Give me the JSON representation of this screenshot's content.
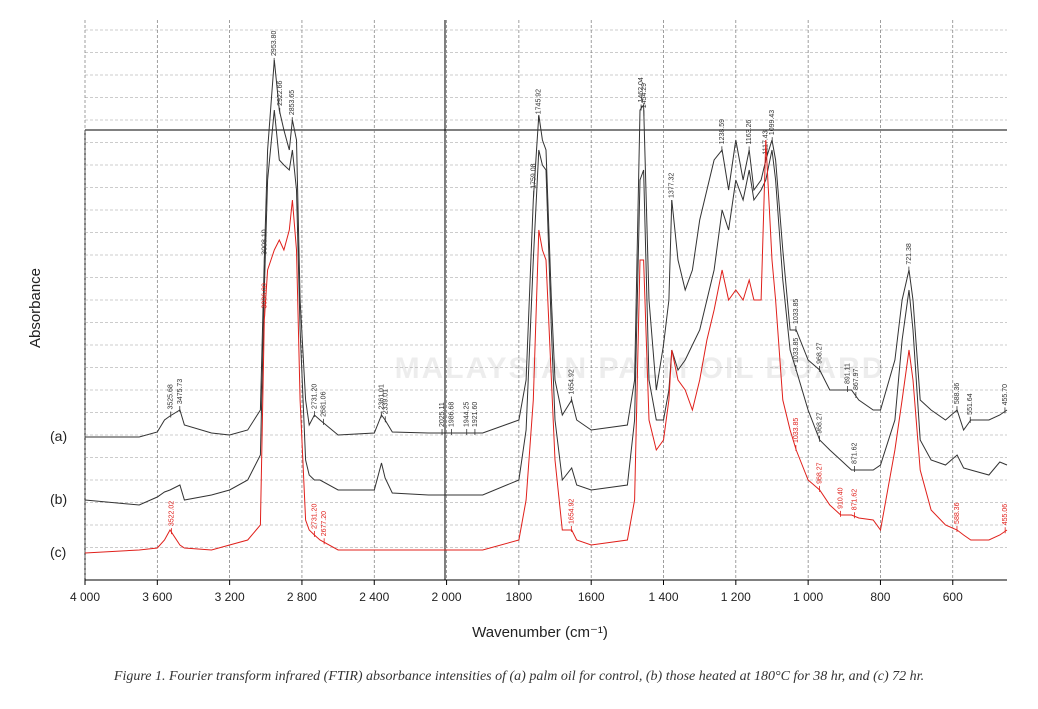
{
  "chart_data": {
    "type": "line",
    "xlabel": "Wavenumber (cm⁻¹)",
    "ylabel": "Absorbance",
    "watermark": "MALAYSIAN PALM OIL BOARD",
    "caption": "Figure 1. Fourier transform infrared (FTIR) absorbance intensities of (a) palm oil for control, (b) those heated at 180°C for 38 hr, and (c) 72 hr.",
    "xlim": [
      4000,
      450
    ],
    "ylim": [
      0,
      560
    ],
    "xticks": [
      {
        "value": 4000,
        "label": "4 000"
      },
      {
        "value": 3600,
        "label": "3 600"
      },
      {
        "value": 3200,
        "label": "3 200"
      },
      {
        "value": 2800,
        "label": "2 800"
      },
      {
        "value": 2400,
        "label": "2 400"
      },
      {
        "value": 2000,
        "label": "2 000"
      },
      1800,
      1600,
      {
        "value": 1400,
        "label": "1 400"
      },
      {
        "value": 1200,
        "label": "1 200"
      },
      {
        "value": 1000,
        "label": "1 000"
      },
      800,
      600
    ],
    "grid": true,
    "x": [
      4000,
      3700,
      3600,
      3560,
      3530,
      3475,
      3450,
      3300,
      3200,
      3100,
      3030,
      3008,
      2990,
      2953,
      2925,
      2900,
      2870,
      2853,
      2830,
      2810,
      2780,
      2760,
      2731,
      2700,
      2600,
      2400,
      2360,
      2340,
      2300,
      2100,
      2000,
      1900,
      1800,
      1780,
      1760,
      1745,
      1735,
      1725,
      1710,
      1700,
      1680,
      1654,
      1640,
      1600,
      1500,
      1480,
      1465,
      1455,
      1440,
      1420,
      1400,
      1385,
      1377,
      1360,
      1340,
      1320,
      1300,
      1280,
      1260,
      1238,
      1220,
      1200,
      1180,
      1163,
      1150,
      1130,
      1117,
      1100,
      1090,
      1070,
      1050,
      1033,
      1000,
      968,
      940,
      910,
      880,
      860,
      820,
      800,
      760,
      740,
      721,
      710,
      690,
      660,
      620,
      588,
      570,
      550,
      500,
      470,
      450
    ],
    "series": [
      {
        "name": "(a)",
        "color": "#333333",
        "values": [
          143,
          143,
          148,
          160,
          164,
          170,
          155,
          147,
          145,
          150,
          170,
          320,
          430,
          520,
          470,
          450,
          430,
          460,
          440,
          280,
          180,
          155,
          165,
          160,
          145,
          147,
          165,
          160,
          148,
          147,
          147,
          147,
          160,
          200,
          380,
          465,
          440,
          430,
          280,
          200,
          165,
          180,
          160,
          150,
          155,
          200,
          470,
          475,
          280,
          190,
          235,
          280,
          380,
          320,
          290,
          310,
          360,
          390,
          420,
          430,
          390,
          440,
          400,
          430,
          390,
          400,
          420,
          440,
          420,
          330,
          250,
          250,
          220,
          210,
          190,
          190,
          190,
          180,
          170,
          170,
          220,
          280,
          310,
          280,
          180,
          170,
          160,
          170,
          150,
          160,
          160,
          165,
          170
        ],
        "peaks": [
          {
            "x": 3525.68,
            "label": "3525.68"
          },
          {
            "x": 3475.73,
            "label": "3475.73"
          },
          {
            "x": 3008.1,
            "label": "3008.10"
          },
          {
            "x": 2953.8,
            "label": "2953.80"
          },
          {
            "x": 2922.66,
            "label": "2922.66"
          },
          {
            "x": 2853.65,
            "label": "2853.65"
          },
          {
            "x": 2731.2,
            "label": "2731.20"
          },
          {
            "x": 2681.06,
            "label": "2681.06"
          },
          {
            "x": 2361.01,
            "label": "2361.01"
          },
          {
            "x": 2339.01,
            "label": "2339.01"
          },
          {
            "x": 2025.11,
            "label": "2025.11"
          },
          {
            "x": 1986.68,
            "label": "1986.68"
          },
          {
            "x": 1944.25,
            "label": "1944.25"
          },
          {
            "x": 1921.6,
            "label": "1921.60"
          },
          {
            "x": 1759.08,
            "label": "1759.08"
          },
          {
            "x": 1745.92,
            "label": "1745.92"
          },
          {
            "x": 1654.92,
            "label": "1654.92"
          },
          {
            "x": 1462.04,
            "label": "1462.04"
          },
          {
            "x": 1454.29,
            "label": "1454.29"
          },
          {
            "x": 1377.32,
            "label": "1377.32"
          },
          {
            "x": 1238.59,
            "label": "1238.59"
          },
          {
            "x": 1163.26,
            "label": "1163.26"
          },
          {
            "x": 1117.43,
            "label": "1117.43"
          },
          {
            "x": 1099.43,
            "label": "1099.43"
          },
          {
            "x": 1033.85,
            "label": "1033.85"
          },
          {
            "x": 968.27,
            "label": "968.27"
          },
          {
            "x": 891.11,
            "label": "891.11"
          },
          {
            "x": 867.97,
            "label": "867.97"
          },
          {
            "x": 721.38,
            "label": "721.38"
          },
          {
            "x": 588.36,
            "label": "588.36"
          },
          {
            "x": 551.64,
            "label": "551.64"
          },
          {
            "x": 455.7,
            "label": "455.70"
          }
        ]
      },
      {
        "name": "(b)",
        "color": "#333333",
        "values": [
          80,
          75,
          83,
          88,
          90,
          95,
          80,
          85,
          90,
          100,
          125,
          290,
          400,
          470,
          420,
          415,
          410,
          430,
          390,
          250,
          120,
          105,
          100,
          100,
          90,
          90,
          117,
          102,
          87,
          85,
          85,
          85,
          100,
          150,
          320,
          430,
          415,
          410,
          250,
          160,
          100,
          112,
          95,
          90,
          95,
          160,
          400,
          410,
          200,
          160,
          160,
          190,
          230,
          210,
          220,
          235,
          250,
          280,
          310,
          370,
          350,
          400,
          380,
          410,
          380,
          390,
          400,
          430,
          400,
          300,
          230,
          210,
          170,
          140,
          130,
          120,
          110,
          110,
          110,
          115,
          160,
          240,
          290,
          250,
          140,
          120,
          115,
          125,
          112,
          110,
          105,
          118,
          115
        ],
        "peaks": [
          {
            "x": 1033.85,
            "label": "1033.85"
          },
          {
            "x": 968.27,
            "label": "968.27"
          },
          {
            "x": 871.62,
            "label": "871.62"
          }
        ]
      },
      {
        "name": "(c)",
        "color": "#e0201b",
        "values": [
          27,
          30,
          32,
          40,
          50,
          35,
          32,
          30,
          35,
          40,
          55,
          260,
          310,
          330,
          340,
          330,
          350,
          380,
          330,
          180,
          60,
          50,
          45,
          40,
          30,
          30,
          30,
          30,
          30,
          30,
          30,
          30,
          40,
          80,
          180,
          350,
          330,
          320,
          200,
          120,
          50,
          50,
          40,
          35,
          40,
          80,
          320,
          320,
          160,
          130,
          140,
          180,
          230,
          200,
          190,
          170,
          200,
          240,
          270,
          310,
          280,
          290,
          280,
          300,
          280,
          280,
          440,
          320,
          280,
          180,
          150,
          130,
          100,
          90,
          75,
          65,
          65,
          62,
          60,
          50,
          130,
          180,
          230,
          200,
          110,
          70,
          55,
          50,
          45,
          40,
          40,
          45,
          50
        ],
        "peaks": [
          {
            "x": 3522.02,
            "label": "3522.02"
          },
          {
            "x": 3006.0,
            "label": "3006.00"
          },
          {
            "x": 2731.2,
            "label": "2731.20"
          },
          {
            "x": 2677.2,
            "label": "2677.20"
          },
          {
            "x": 1654.92,
            "label": "1654.92"
          },
          {
            "x": 1033.85,
            "label": "1033.85"
          },
          {
            "x": 968.27,
            "label": "968.27"
          },
          {
            "x": 910.4,
            "label": "910.40"
          },
          {
            "x": 871.62,
            "label": "871.62"
          },
          {
            "x": 588.36,
            "label": "588.36"
          },
          {
            "x": 455.06,
            "label": "455.06"
          }
        ]
      }
    ]
  }
}
